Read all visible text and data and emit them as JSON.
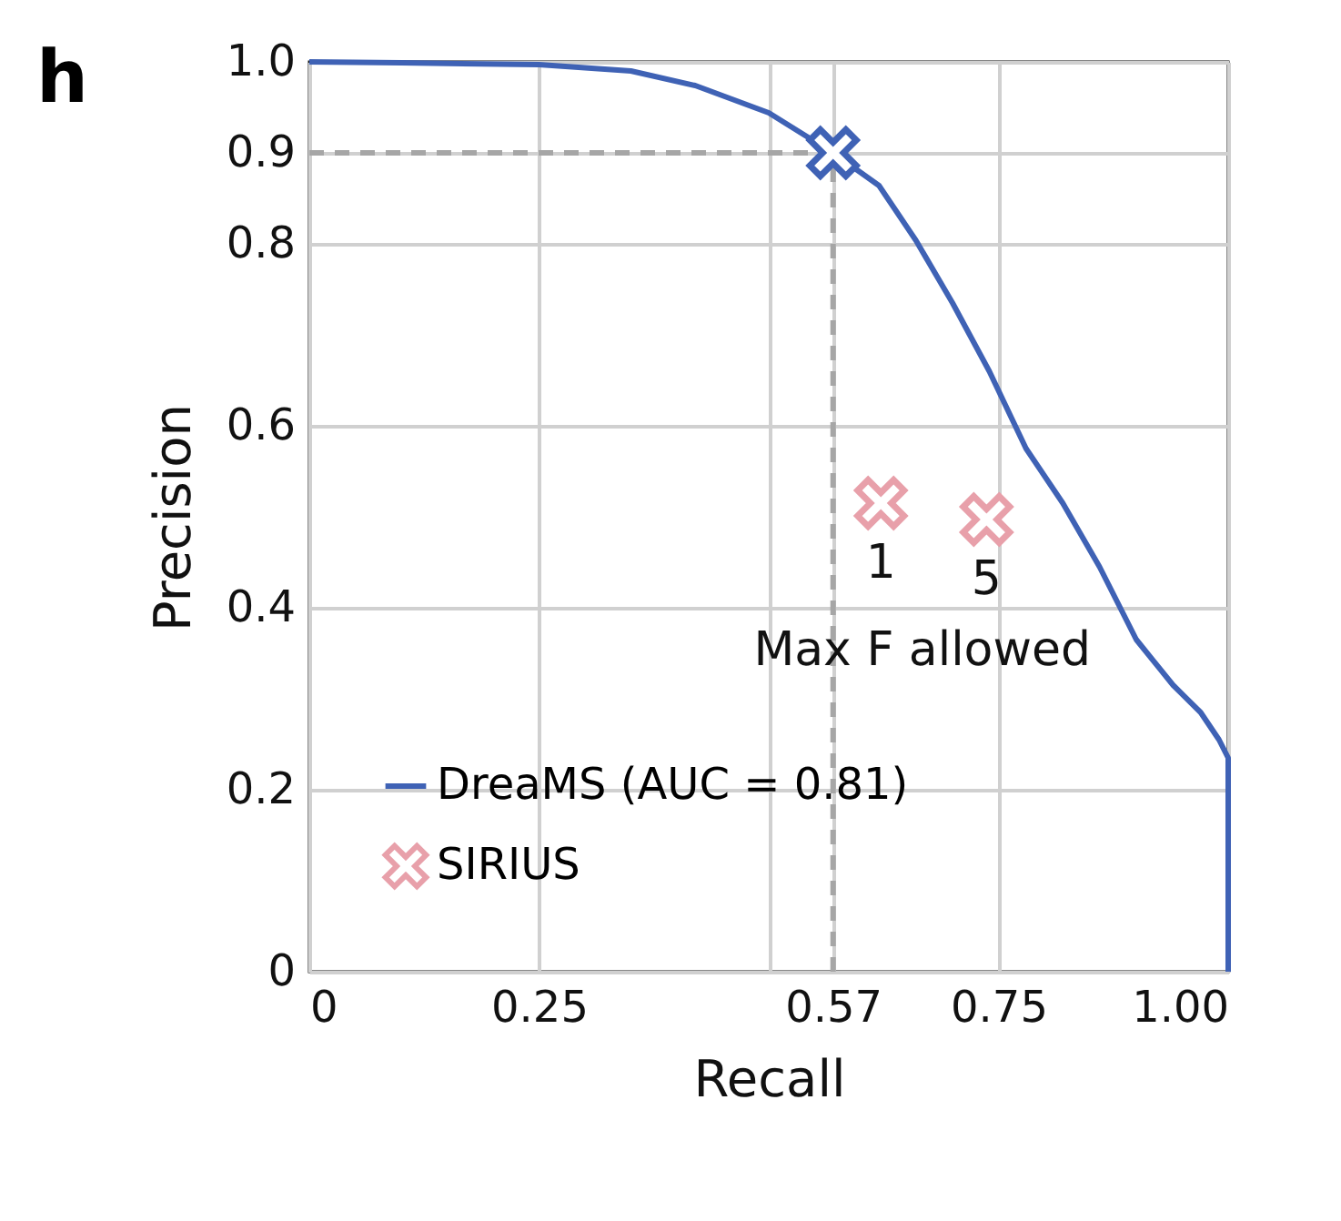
{
  "chart_data": {
    "type": "line",
    "title": "h",
    "xlabel": "Recall",
    "ylabel": "Precision",
    "xlim": [
      0,
      1
    ],
    "ylim": [
      0,
      1
    ],
    "xticks": [
      0,
      0.25,
      {
        "value": 0.5,
        "label": null
      },
      0.57,
      0.75,
      {
        "value": 1,
        "label": "1.00"
      }
    ],
    "yticks": [
      0,
      0.2,
      0.4,
      0.6,
      0.8,
      0.9,
      {
        "value": 1,
        "label": "1.0"
      }
    ],
    "grid": true,
    "legend": "bottom left",
    "series": [
      {
        "name": "DreaMS (AUC = 0.81)",
        "color": "#3f62b5",
        "line_style": "solid",
        "marker": "none",
        "x": [
          0,
          0.1,
          0.25,
          0.35,
          0.42,
          0.5,
          0.57,
          0.62,
          0.66,
          0.7,
          0.74,
          0.78,
          0.82,
          0.86,
          0.9,
          0.94,
          0.97,
          0.99,
          1,
          1
        ],
        "values": [
          1,
          0.999,
          0.997,
          0.99,
          0.974,
          0.944,
          0.9,
          0.864,
          0.804,
          0.735,
          0.66,
          0.575,
          0.515,
          0.445,
          0.365,
          0.315,
          0.285,
          0.255,
          0.235,
          0
        ]
      },
      {
        "type": "scatter",
        "color": "#3f62b5",
        "marker": "cross",
        "x": [
          0.57
        ],
        "values": [
          0.9
        ]
      },
      {
        "name": "SIRIUS",
        "type": "scatter",
        "color": "#e8a0aa",
        "marker": "cross",
        "x": [
          0.622,
          0.737
        ],
        "values": [
          0.515,
          0.497
        ]
      }
    ],
    "ref_lines": [
      {
        "axis": "x",
        "value": 0.57,
        "color": "#a6a6a6",
        "line_style": "dashed"
      },
      {
        "axis": "y",
        "value": 0.9,
        "color": "#a6a6a6",
        "line_style": "dashed"
      }
    ],
    "annotations": [
      {
        "text": "1",
        "x": 0.622,
        "y": 0.515
      },
      {
        "text": "5",
        "x": 0.737,
        "y": 0.497
      },
      "Max F allowed"
    ]
  }
}
